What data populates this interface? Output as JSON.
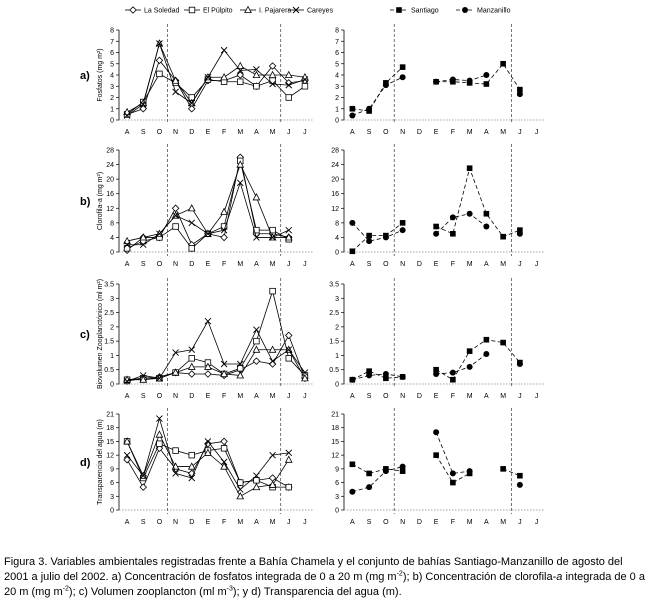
{
  "chart_data": [
    {
      "type": "line",
      "panel": "a)",
      "side": "left",
      "ylabel": "Fosfatos (mg m²)",
      "ylim": [
        0,
        8
      ],
      "yticks": [
        "0",
        "1",
        "2",
        "3",
        "4",
        "5",
        "6",
        "7",
        "8"
      ],
      "categories": [
        "A",
        "S",
        "O",
        "N",
        "D",
        "E",
        "F",
        "M",
        "A",
        "M",
        "J",
        "J"
      ],
      "series": [
        {
          "name": "La Soledad",
          "values": [
            0.5,
            1.0,
            5.3,
            3.5,
            1.0,
            3.5,
            3.5,
            4.0,
            3.0,
            4.8,
            3.3,
            3.5
          ]
        },
        {
          "name": "El Púlpito",
          "values": [
            0.5,
            1.6,
            4.1,
            3.3,
            2.0,
            3.6,
            3.4,
            3.4,
            3.0,
            3.5,
            2.0,
            3.0
          ]
        },
        {
          "name": "I. Pajarera",
          "values": [
            0.7,
            1.5,
            6.8,
            3.5,
            1.5,
            3.8,
            3.8,
            4.8,
            4.0,
            4.0,
            4.0,
            3.8
          ]
        },
        {
          "name": "Careyes",
          "values": [
            0.4,
            1.4,
            6.8,
            2.5,
            1.5,
            3.8,
            6.2,
            4.4,
            4.5,
            3.2,
            3.1,
            3.6
          ]
        }
      ]
    },
    {
      "type": "line",
      "panel": "a)",
      "side": "right",
      "ylim": [
        0,
        8
      ],
      "yticks": [
        "0",
        "1",
        "2",
        "3",
        "4",
        "5",
        "6",
        "7",
        "8"
      ],
      "categories": [
        "A",
        "S",
        "O",
        "N",
        "D",
        "E",
        "F",
        "M",
        "A",
        "M",
        "J",
        "J"
      ],
      "series": [
        {
          "name": "Santiago",
          "values": [
            1.0,
            0.8,
            3.3,
            4.7,
            null,
            3.4,
            3.4,
            3.3,
            3.2,
            5.0,
            2.7,
            null
          ]
        },
        {
          "name": "Manzanillo",
          "values": [
            0.4,
            1.0,
            3.1,
            3.8,
            null,
            3.4,
            3.6,
            3.5,
            4.0,
            null,
            2.3,
            null
          ]
        }
      ]
    },
    {
      "type": "line",
      "panel": "b)",
      "side": "left",
      "ylabel": "Clorofila-a (mg m²)",
      "ylim": [
        0,
        28
      ],
      "yticks": [
        "0",
        "4",
        "8",
        "12",
        "16",
        "20",
        "24",
        "28"
      ],
      "categories": [
        "A",
        "S",
        "O",
        "N",
        "D",
        "E",
        "F",
        "M",
        "A",
        "M",
        "J",
        "J"
      ],
      "series": [
        {
          "name": "La Soledad",
          "values": [
            0.5,
            4.0,
            4.0,
            12.0,
            2.0,
            5.0,
            4.0,
            26.0,
            5.0,
            5.0,
            4.0,
            null
          ]
        },
        {
          "name": "El Púlpito",
          "values": [
            1.0,
            3.0,
            4.0,
            7.0,
            1.0,
            5.0,
            7.0,
            25.0,
            6.0,
            6.0,
            3.5,
            null
          ]
        },
        {
          "name": "I. Pajarera",
          "values": [
            3.0,
            4.0,
            5.0,
            10.0,
            12.0,
            5.0,
            11.0,
            24.0,
            15.0,
            4.0,
            4.0,
            null
          ]
        },
        {
          "name": "Careyes",
          "values": [
            2.0,
            2.0,
            5.0,
            10.0,
            8.0,
            5.0,
            6.0,
            19.0,
            4.0,
            4.0,
            6.0,
            null
          ]
        }
      ]
    },
    {
      "type": "line",
      "panel": "b)",
      "side": "right",
      "ylim": [
        0,
        28
      ],
      "yticks": [
        "0",
        "4",
        "8",
        "12",
        "16",
        "20",
        "24",
        "28"
      ],
      "categories": [
        "A",
        "S",
        "O",
        "N",
        "D",
        "E",
        "F",
        "M",
        "A",
        "M",
        "J",
        "J"
      ],
      "series": [
        {
          "name": "Santiago",
          "values": [
            0.2,
            4.5,
            4.5,
            8.0,
            null,
            7.0,
            5.0,
            23.0,
            10.5,
            4.2,
            6.0,
            null
          ]
        },
        {
          "name": "Manzanillo",
          "values": [
            8.0,
            3.0,
            4.0,
            6.0,
            null,
            5.0,
            9.5,
            10.5,
            7.0,
            null,
            5.0,
            null
          ]
        }
      ]
    },
    {
      "type": "line",
      "panel": "c)",
      "side": "left",
      "ylabel": "Biovolumen Zooplanctónico (ml m²)",
      "ylim": [
        0,
        3.5
      ],
      "yticks": [
        "0",
        "0.5",
        "1",
        "1.5",
        "2",
        "2.5",
        "3",
        "3.5"
      ],
      "categories": [
        "A",
        "S",
        "O",
        "N",
        "D",
        "E",
        "F",
        "M",
        "A",
        "M",
        "J",
        "J"
      ],
      "series": [
        {
          "name": "La Soledad",
          "values": [
            0.1,
            0.2,
            0.25,
            0.4,
            0.35,
            0.35,
            0.3,
            0.5,
            0.8,
            0.7,
            1.7,
            0.2
          ]
        },
        {
          "name": "El Púlpito",
          "values": [
            0.15,
            0.2,
            0.2,
            0.4,
            0.9,
            0.75,
            0.35,
            0.55,
            1.5,
            3.25,
            0.9,
            0.3
          ]
        },
        {
          "name": "I. Pajarera",
          "values": [
            0.15,
            0.15,
            0.2,
            0.4,
            0.6,
            0.6,
            0.35,
            0.3,
            1.2,
            1.2,
            1.2,
            0.2
          ]
        },
        {
          "name": "Careyes",
          "values": [
            0.1,
            0.3,
            0.2,
            1.1,
            1.2,
            2.2,
            0.7,
            0.7,
            1.9,
            0.8,
            1.2,
            0.4
          ]
        }
      ]
    },
    {
      "type": "line",
      "panel": "c)",
      "side": "right",
      "ylim": [
        0,
        3.5
      ],
      "yticks": [
        "0",
        "0.5",
        "1",
        "1.5",
        "2",
        "2.5",
        "3",
        "3.5"
      ],
      "categories": [
        "A",
        "S",
        "O",
        "N",
        "D",
        "E",
        "F",
        "M",
        "A",
        "M",
        "J",
        "J"
      ],
      "series": [
        {
          "name": "Santiago",
          "values": [
            0.15,
            0.45,
            0.2,
            0.25,
            null,
            0.5,
            0.15,
            1.15,
            1.55,
            1.45,
            0.75,
            null
          ]
        },
        {
          "name": "Manzanillo",
          "values": [
            0.15,
            0.3,
            0.35,
            0.25,
            null,
            0.35,
            0.4,
            0.6,
            1.05,
            null,
            0.7,
            null
          ]
        }
      ]
    },
    {
      "type": "line",
      "panel": "d)",
      "side": "left",
      "ylabel": "Transparencia del agua (m)",
      "ylim": [
        0,
        21
      ],
      "yticks": [
        "0",
        "3",
        "6",
        "9",
        "12",
        "15",
        "18",
        "21"
      ],
      "categories": [
        "A",
        "S",
        "O",
        "N",
        "D",
        "E",
        "F",
        "M",
        "A",
        "M",
        "J",
        "J"
      ],
      "series": [
        {
          "name": "La Soledad",
          "values": [
            11.0,
            5.0,
            13.5,
            9.0,
            8.0,
            14.5,
            15.0,
            6.0,
            6.5,
            7.0,
            5.0,
            null
          ]
        },
        {
          "name": "El Púlpito",
          "values": [
            15.0,
            7.0,
            14.5,
            13.0,
            12.0,
            13.0,
            13.5,
            6.0,
            6.5,
            5.0,
            5.0,
            null
          ]
        },
        {
          "name": "I. Pajarera",
          "values": [
            15.0,
            7.5,
            16.5,
            9.5,
            9.5,
            12.5,
            9.5,
            3.0,
            5.0,
            5.5,
            11.0,
            null
          ]
        },
        {
          "name": "Careyes",
          "values": [
            12.0,
            7.5,
            20.0,
            8.0,
            7.0,
            15.0,
            10.5,
            4.5,
            7.5,
            12.0,
            12.5,
            null
          ]
        }
      ]
    },
    {
      "type": "line",
      "panel": "d)",
      "side": "right",
      "ylim": [
        0,
        21
      ],
      "yticks": [
        "0",
        "3",
        "6",
        "9",
        "12",
        "15",
        "18",
        "21"
      ],
      "categories": [
        "A",
        "S",
        "O",
        "N",
        "D",
        "E",
        "F",
        "M",
        "A",
        "M",
        "J",
        "J"
      ],
      "series": [
        {
          "name": "Santiago",
          "values": [
            10.0,
            8.0,
            9.0,
            8.5,
            null,
            12.0,
            6.0,
            8.0,
            null,
            9.0,
            7.5,
            null
          ]
        },
        {
          "name": "Manzanillo",
          "values": [
            4.0,
            5.0,
            8.5,
            9.5,
            null,
            17.0,
            8.0,
            8.5,
            null,
            null,
            5.5,
            null
          ]
        }
      ]
    }
  ],
  "legend_left": [
    "La Soledad",
    "El Púlpito",
    "I. Pajarera",
    "Careyes"
  ],
  "legend_right": [
    "Santiago",
    "Manzanillo"
  ],
  "caption": {
    "p1": "Figura 3. Variables ambientales registradas frente a Bahía Chamela y el conjunto de bahías Santiago-Manzanillo de agosto del 2001 a julio del 2002. a) Concentración de fosfatos integrada de 0 a 20 m (mg m",
    "s1": "-2",
    "p2": "); b) Concentración de clorofila-",
    "p2i": "a",
    "p3": " integrada de 0 a 20 m (mg m",
    "s2": "-2",
    "p4": "); c) Volumen zooplancton (ml m",
    "s3": "-3",
    "p5": "); y d) Transparencia del agua (m)."
  }
}
